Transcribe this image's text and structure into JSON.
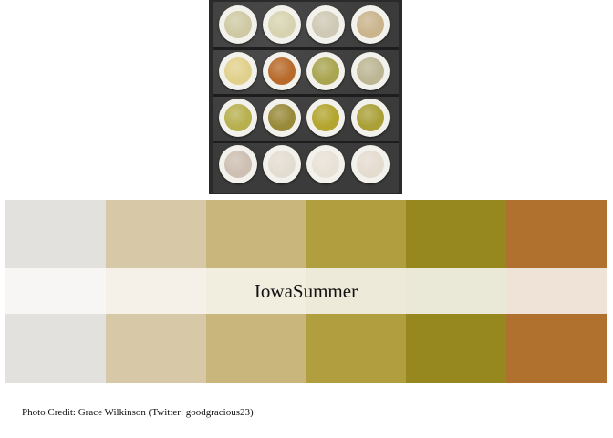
{
  "palette": {
    "title": "IowaSummer",
    "swatches": [
      {
        "color": "#E3E1DD",
        "band": "#F7F6F4"
      },
      {
        "color": "#D7C9A8",
        "band": "#F5F1E8"
      },
      {
        "color": "#C9B67C",
        "band": "#F2EEDF"
      },
      {
        "color": "#B09E3F",
        "band": "#EEEAD9"
      },
      {
        "color": "#96881E",
        "band": "#EAE8D6"
      },
      {
        "color": "#B0712F",
        "band": "#EFE3D7"
      }
    ]
  },
  "photo": {
    "dishes": [
      "#cfc9a3",
      "#d7d3b0",
      "#cfc8b4",
      "#c9b48c",
      "#e1d08c",
      "#b86a2a",
      "#a9a550",
      "#bdb694",
      "#b7b04f",
      "#998a3a",
      "#b3a52f",
      "#aaa037",
      "#cdbfb2",
      "#e3ddd1",
      "#e8e1d6",
      "#e5dcd0"
    ]
  },
  "credit": {
    "text": "Photo Credit: Grace Wilkinson (Twitter: goodgracious23)"
  }
}
